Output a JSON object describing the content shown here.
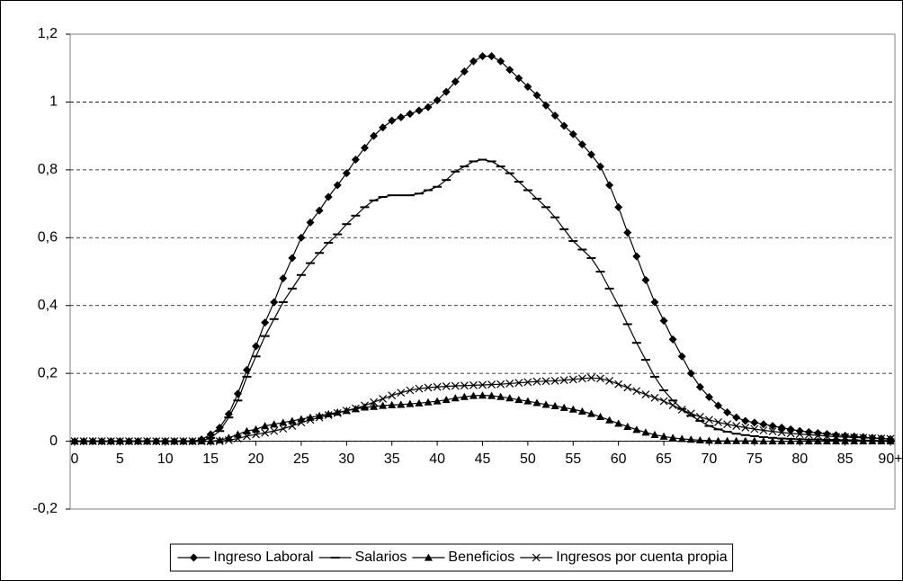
{
  "chart_data": {
    "type": "line",
    "categories": [
      "0",
      null,
      null,
      null,
      null,
      "5",
      null,
      null,
      null,
      null,
      "10",
      null,
      null,
      null,
      null,
      "15",
      null,
      null,
      null,
      null,
      "20",
      null,
      null,
      null,
      null,
      "25",
      null,
      null,
      null,
      null,
      "30",
      null,
      null,
      null,
      null,
      "35",
      null,
      null,
      null,
      null,
      "40",
      null,
      null,
      null,
      null,
      "45",
      null,
      null,
      null,
      null,
      "50",
      null,
      null,
      null,
      null,
      "55",
      null,
      null,
      null,
      null,
      "60",
      null,
      null,
      null,
      null,
      "65",
      null,
      null,
      null,
      null,
      "70",
      null,
      null,
      null,
      null,
      "75",
      null,
      null,
      null,
      null,
      "80",
      null,
      null,
      null,
      null,
      "85",
      null,
      null,
      null,
      null,
      "90+"
    ],
    "ylim": [
      -0.2,
      1.2
    ],
    "yticks": [
      {
        "value": -0.2,
        "label": "-0,2"
      },
      0,
      {
        "value": 0.2,
        "label": "0,2"
      },
      {
        "value": 0.4,
        "label": "0,4"
      },
      {
        "value": 0.6,
        "label": "0,6"
      },
      {
        "value": 0.8,
        "label": "0,8"
      },
      1,
      {
        "value": 1.2,
        "label": "1,2"
      }
    ],
    "grid": true,
    "legend": "bottom",
    "series": [
      {
        "name": "Ingreso Laboral",
        "color": "#000000",
        "marker": "diamond",
        "values": [
          0,
          0,
          0,
          0,
          0,
          0,
          0,
          0,
          0,
          0,
          0,
          0,
          0,
          0,
          0.005,
          0.02,
          0.04,
          0.08,
          0.14,
          0.21,
          0.28,
          0.35,
          0.41,
          0.48,
          0.54,
          0.6,
          0.645,
          0.68,
          0.72,
          0.755,
          0.79,
          0.83,
          0.865,
          0.9,
          0.925,
          0.945,
          0.955,
          0.965,
          0.975,
          0.985,
          1.005,
          1.03,
          1.06,
          1.09,
          1.12,
          1.135,
          1.135,
          1.12,
          1.095,
          1.07,
          1.045,
          1.02,
          0.99,
          0.96,
          0.93,
          0.905,
          0.875,
          0.845,
          0.81,
          0.755,
          0.69,
          0.615,
          0.545,
          0.475,
          0.41,
          0.355,
          0.3,
          0.25,
          0.2,
          0.16,
          0.13,
          0.105,
          0.085,
          0.07,
          0.06,
          0.055,
          0.05,
          0.045,
          0.04,
          0.035,
          0.03,
          0.027,
          0.024,
          0.021,
          0.018,
          0.016,
          0.014,
          0.012,
          0.01,
          0.008,
          0.006
        ]
      },
      {
        "name": "Salarios",
        "color": "#000000",
        "marker": "dash",
        "values": [
          0,
          0,
          0,
          0,
          0,
          0,
          0,
          0,
          0,
          0,
          0,
          0,
          0,
          0,
          0,
          0.01,
          0.03,
          0.07,
          0.12,
          0.19,
          0.25,
          0.31,
          0.36,
          0.41,
          0.45,
          0.49,
          0.525,
          0.555,
          0.585,
          0.61,
          0.64,
          0.665,
          0.69,
          0.71,
          0.72,
          0.725,
          0.725,
          0.725,
          0.73,
          0.74,
          0.75,
          0.77,
          0.795,
          0.81,
          0.825,
          0.83,
          0.825,
          0.81,
          0.79,
          0.765,
          0.74,
          0.715,
          0.69,
          0.66,
          0.625,
          0.59,
          0.565,
          0.54,
          0.5,
          0.45,
          0.4,
          0.345,
          0.29,
          0.24,
          0.19,
          0.15,
          0.12,
          0.095,
          0.075,
          0.06,
          0.045,
          0.035,
          0.028,
          0.022,
          0.018,
          0.015,
          0.012,
          0.01,
          0.008,
          0.007,
          0.006,
          0.005,
          0.005,
          0.004,
          0.004,
          0.003,
          0.003,
          0.002,
          0.002,
          0.001,
          0.001
        ]
      },
      {
        "name": "Beneficios",
        "color": "#000000",
        "marker": "triangle",
        "values": [
          0,
          0,
          0,
          0,
          0,
          0,
          0,
          0,
          0,
          0,
          0,
          0,
          0,
          0,
          0,
          0,
          0.003,
          0.01,
          0.02,
          0.03,
          0.035,
          0.045,
          0.05,
          0.055,
          0.06,
          0.065,
          0.07,
          0.075,
          0.08,
          0.085,
          0.09,
          0.095,
          0.1,
          0.102,
          0.105,
          0.107,
          0.108,
          0.11,
          0.112,
          0.115,
          0.118,
          0.122,
          0.127,
          0.131,
          0.134,
          0.135,
          0.134,
          0.131,
          0.127,
          0.122,
          0.118,
          0.113,
          0.108,
          0.104,
          0.099,
          0.094,
          0.088,
          0.081,
          0.072,
          0.062,
          0.052,
          0.043,
          0.034,
          0.026,
          0.019,
          0.014,
          0.01,
          0.007,
          0.005,
          0.003,
          0.002,
          0.001,
          0.001,
          0.001,
          0.001,
          0.001,
          0,
          0,
          0,
          0,
          0,
          0,
          0,
          0,
          0,
          0,
          0,
          0,
          0,
          0,
          0
        ]
      },
      {
        "name": "Ingresos por cuenta propia",
        "color": "#000000",
        "marker": "x",
        "values": [
          0,
          0,
          0,
          0,
          0,
          0,
          0,
          0,
          0,
          0,
          0,
          0,
          0,
          0,
          0,
          0,
          0,
          0.003,
          0.008,
          0.015,
          0.02,
          0.025,
          0.03,
          0.037,
          0.045,
          0.055,
          0.063,
          0.07,
          0.077,
          0.083,
          0.09,
          0.097,
          0.105,
          0.115,
          0.125,
          0.135,
          0.143,
          0.15,
          0.155,
          0.158,
          0.16,
          0.162,
          0.163,
          0.164,
          0.165,
          0.166,
          0.167,
          0.168,
          0.17,
          0.172,
          0.174,
          0.176,
          0.177,
          0.178,
          0.18,
          0.182,
          0.185,
          0.187,
          0.185,
          0.178,
          0.168,
          0.158,
          0.148,
          0.138,
          0.128,
          0.118,
          0.106,
          0.093,
          0.082,
          0.072,
          0.063,
          0.056,
          0.05,
          0.045,
          0.04,
          0.036,
          0.032,
          0.029,
          0.026,
          0.023,
          0.021,
          0.019,
          0.017,
          0.015,
          0.013,
          0.012,
          0.011,
          0.01,
          0.009,
          0.008,
          0.007
        ]
      }
    ]
  }
}
